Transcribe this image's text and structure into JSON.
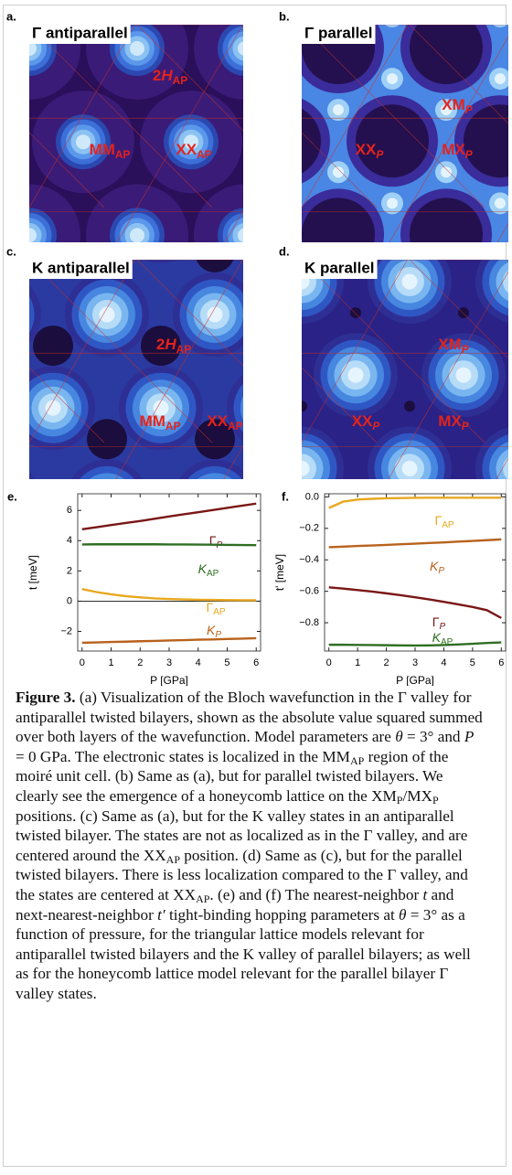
{
  "panels": [
    {
      "letter": "a.",
      "title": "Γ antiparallel",
      "labels": [
        [
          {
            "text": "2"
          },
          {
            "text": "H",
            "style": "italic"
          },
          {
            "text": "AP",
            "style": "sub"
          }
        ],
        [
          {
            "text": "MM"
          },
          {
            "text": "AP",
            "style": "sub"
          }
        ],
        [
          {
            "text": "XX"
          },
          {
            "text": "AP",
            "style": "sub"
          }
        ]
      ]
    },
    {
      "letter": "b.",
      "title": "Γ parallel",
      "labels": [
        [
          {
            "text": "XM"
          },
          {
            "text": "P",
            "style": "sub-italic"
          }
        ],
        [
          {
            "text": "XX"
          },
          {
            "text": "P",
            "style": "sub-italic"
          }
        ],
        [
          {
            "text": "MX"
          },
          {
            "text": "P",
            "style": "sub-italic"
          }
        ]
      ]
    },
    {
      "letter": "c.",
      "title": "K antiparallel",
      "labels": [
        [
          {
            "text": "2"
          },
          {
            "text": "H",
            "style": "italic"
          },
          {
            "text": "AP",
            "style": "sub"
          }
        ],
        [
          {
            "text": "MM"
          },
          {
            "text": "AP",
            "style": "sub"
          }
        ],
        [
          {
            "text": "XX"
          },
          {
            "text": "AP",
            "style": "sub"
          }
        ]
      ]
    },
    {
      "letter": "d.",
      "title": "K parallel",
      "labels": [
        [
          {
            "text": "XM"
          },
          {
            "text": "P",
            "style": "sub-italic"
          }
        ],
        [
          {
            "text": "XX"
          },
          {
            "text": "P",
            "style": "sub-italic"
          }
        ],
        [
          {
            "text": "MX"
          },
          {
            "text": "P",
            "style": "sub-italic"
          }
        ]
      ]
    }
  ],
  "chart_data": [
    {
      "type": "line",
      "letter": "e.",
      "x_label": "P [GPa]",
      "y_label": "t [meV]",
      "axis_at_zero": true,
      "x": [
        0,
        0.5,
        1,
        1.5,
        2,
        2.5,
        3,
        3.5,
        4,
        4.5,
        5,
        5.5,
        6
      ],
      "xlim": [
        -0.15,
        6.15
      ],
      "xticks": [
        0,
        1,
        2,
        3,
        4,
        5,
        6
      ],
      "ylim": [
        -3.3,
        7.1
      ],
      "yticks": [
        {
          "value": -2,
          "label": "−2"
        },
        0,
        2,
        4,
        6
      ],
      "series": [
        {
          "name": "Γ",
          "subscript": "P",
          "subscript_italic": true,
          "color": "#7a1616",
          "values": [
            4.75,
            4.89,
            5.03,
            5.17,
            5.3,
            5.45,
            5.6,
            5.74,
            5.88,
            6.02,
            6.17,
            6.31,
            6.45
          ]
        },
        {
          "name": "K",
          "name_italic": true,
          "subscript": "AP",
          "color": "#2f6e22",
          "values": [
            3.75,
            3.76,
            3.76,
            3.76,
            3.76,
            3.76,
            3.75,
            3.75,
            3.74,
            3.73,
            3.72,
            3.71,
            3.7
          ]
        },
        {
          "name": "Γ",
          "subscript": "AP",
          "color": "#e8a81e",
          "values": [
            0.8,
            0.6,
            0.45,
            0.33,
            0.25,
            0.18,
            0.14,
            0.11,
            0.09,
            0.08,
            0.07,
            0.06,
            0.06
          ]
        },
        {
          "name": "K",
          "name_italic": true,
          "subscript": "P",
          "subscript_italic": true,
          "color": "#b8621c",
          "values": [
            -2.75,
            -2.73,
            -2.7,
            -2.68,
            -2.65,
            -2.63,
            -2.6,
            -2.58,
            -2.55,
            -2.53,
            -2.5,
            -2.48,
            -2.45
          ]
        }
      ]
    },
    {
      "type": "line",
      "letter": "f.",
      "x_label": "P [GPa]",
      "y_label": "t' [meV]",
      "x": [
        0,
        0.5,
        1,
        1.5,
        2,
        2.5,
        3,
        3.5,
        4,
        4.5,
        5,
        5.5,
        6
      ],
      "xlim": [
        -0.15,
        6.15
      ],
      "xticks": [
        0,
        1,
        2,
        3,
        4,
        5,
        6
      ],
      "ylim": [
        -0.98,
        0.02
      ],
      "yticks": [
        {
          "value": -0.8,
          "label": "−0.8"
        },
        {
          "value": -0.6,
          "label": "−0.6"
        },
        {
          "value": -0.4,
          "label": "−0.4"
        },
        {
          "value": -0.2,
          "label": "−0.2"
        },
        {
          "value": 0,
          "label": "0.0"
        }
      ],
      "series": [
        {
          "name": "Γ",
          "subscript": "AP",
          "color": "#e8a81e",
          "values": [
            -0.07,
            -0.03,
            -0.017,
            -0.012,
            -0.009,
            -0.007,
            -0.006,
            -0.005,
            -0.005,
            -0.005,
            -0.005,
            -0.005,
            -0.005
          ]
        },
        {
          "name": "K",
          "name_italic": true,
          "subscript": "P",
          "subscript_italic": true,
          "color": "#b8621c",
          "values": [
            -0.32,
            -0.316,
            -0.312,
            -0.309,
            -0.305,
            -0.301,
            -0.297,
            -0.293,
            -0.289,
            -0.284,
            -0.28,
            -0.275,
            -0.27
          ]
        },
        {
          "name": "Γ",
          "subscript": "P",
          "subscript_italic": true,
          "color": "#7a1616",
          "values": [
            -0.575,
            -0.583,
            -0.592,
            -0.602,
            -0.613,
            -0.625,
            -0.638,
            -0.652,
            -0.667,
            -0.683,
            -0.7,
            -0.72,
            -0.77
          ]
        },
        {
          "name": "K",
          "name_italic": true,
          "subscript": "AP",
          "color": "#2f6e22",
          "values": [
            -0.94,
            -0.94,
            -0.941,
            -0.942,
            -0.943,
            -0.944,
            -0.945,
            -0.944,
            -0.942,
            -0.938,
            -0.934,
            -0.929,
            -0.925
          ]
        }
      ]
    }
  ],
  "caption": {
    "label": "Figure 3.",
    "runs": [
      {
        "text": " (a) Visualization of the Bloch wavefunction in the Γ valley for antiparallel twisted bilayers, shown as the absolute value squared summed over both layers of the wavefunction. Model parameters are "
      },
      {
        "text": "θ",
        "style": "italic"
      },
      {
        "text": " = 3° and "
      },
      {
        "text": "P",
        "style": "italic"
      },
      {
        "text": " = 0 GPa. The electronic states is localized in the MM"
      },
      {
        "text": "AP",
        "style": "sub"
      },
      {
        "text": " region of the moiré unit cell. (b) Same as (a), but for parallel twisted bilayers. We clearly see the emergence of a honeycomb lattice on the XM"
      },
      {
        "text": "P",
        "style": "sub"
      },
      {
        "text": "/MX"
      },
      {
        "text": "P",
        "style": "sub"
      },
      {
        "text": " positions. (c) Same as (a), but for the K valley states in an antiparallel twisted bilayer. The states are not as localized as in the Γ valley, and are centered around the XX"
      },
      {
        "text": "AP",
        "style": "sub"
      },
      {
        "text": " position. (d) Same as (c), but for the parallel twisted bilayers. There is less localization compared to the Γ valley, and the states are centered at XX"
      },
      {
        "text": "AP",
        "style": "sub"
      },
      {
        "text": ". (e) and (f) The nearest-neighbor "
      },
      {
        "text": "t",
        "style": "italic"
      },
      {
        "text": " and next-nearest-neighbor "
      },
      {
        "text": "t′",
        "style": "italic"
      },
      {
        "text": " tight-binding hopping parameters at "
      },
      {
        "text": "θ",
        "style": "italic"
      },
      {
        "text": " = 3° as a function of pressure, for the triangular lattice models relevant for antiparallel twisted bilayers and the K valley of parallel bilayers; as well as for the honeycomb lattice model relevant for the parallel bilayer Γ valley states."
      }
    ]
  }
}
